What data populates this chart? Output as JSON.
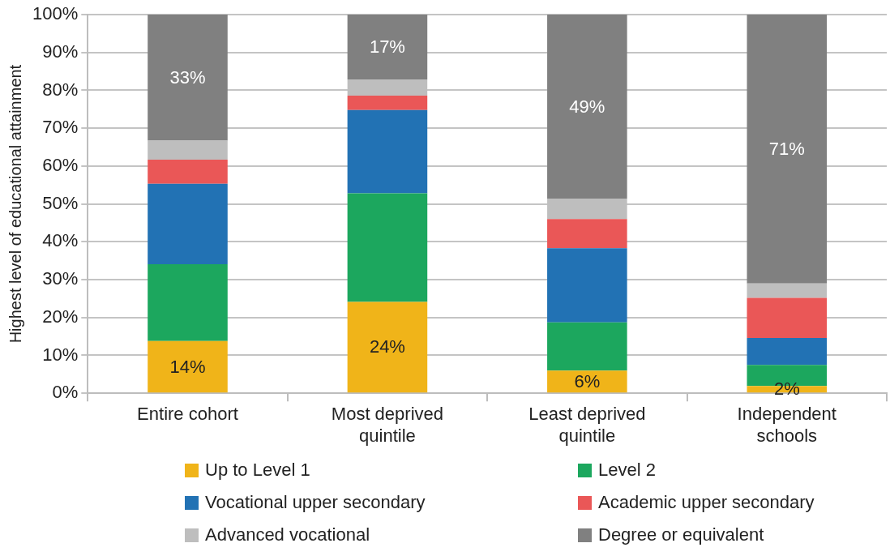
{
  "chart_data": {
    "type": "bar",
    "stacked": true,
    "ylabel": "Highest level of educational attainment",
    "categories": [
      "Entire cohort",
      "Most deprived quintile",
      "Least deprived quintile",
      "Independent schools"
    ],
    "series": [
      {
        "name": "Up to Level 1",
        "color": "#f0b419",
        "values": [
          13.8,
          24.1,
          6.0,
          1.9
        ],
        "value_labels": [
          "14%",
          "24%",
          "6%",
          "2%"
        ]
      },
      {
        "name": "Level 2",
        "color": "#1ca75e",
        "values": [
          20.3,
          28.7,
          12.7,
          5.6
        ]
      },
      {
        "name": "Vocational upper secondary",
        "color": "#2272b4",
        "values": [
          21.2,
          22.0,
          19.6,
          7.1
        ]
      },
      {
        "name": "Academic upper secondary",
        "color": "#ea5757",
        "values": [
          6.4,
          3.8,
          7.7,
          10.6
        ]
      },
      {
        "name": "Advanced vocational",
        "color": "#bebebe",
        "values": [
          5.0,
          4.3,
          5.4,
          3.8
        ]
      },
      {
        "name": "Degree or equivalent",
        "color": "#808080",
        "values": [
          33.3,
          17.1,
          48.6,
          71.0
        ],
        "value_labels": [
          "33%",
          "17%",
          "49%",
          "71%"
        ]
      }
    ],
    "ylim": [
      0,
      100
    ],
    "yticks": [
      {
        "value": 0,
        "label": "0%"
      },
      {
        "value": 10,
        "label": "10%"
      },
      {
        "value": 20,
        "label": "20%"
      },
      {
        "value": 30,
        "label": "30%"
      },
      {
        "value": 40,
        "label": "40%"
      },
      {
        "value": 50,
        "label": "50%"
      },
      {
        "value": 60,
        "label": "60%"
      },
      {
        "value": 70,
        "label": "70%"
      },
      {
        "value": 80,
        "label": "80%"
      },
      {
        "value": 90,
        "label": "90%"
      },
      {
        "value": 100,
        "label": "100%"
      }
    ],
    "grid": "y",
    "legend": "bottom"
  }
}
